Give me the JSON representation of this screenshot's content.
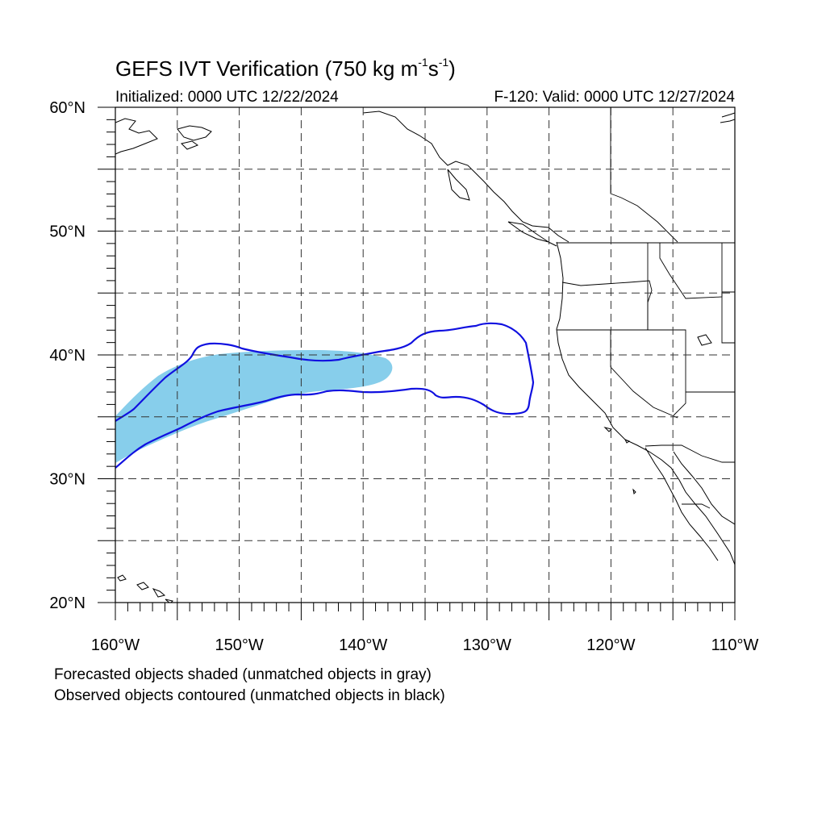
{
  "title": {
    "prefix": "GEFS IVT Verification (750 kg m",
    "exp1": "-1",
    "middle": "s",
    "exp2": "-1",
    "suffix": ")"
  },
  "initialized": "Initialized: 0000 UTC 12/22/2024",
  "valid": "F-120: Valid: 0000 UTC 12/27/2024",
  "map": {
    "lon_range": [
      -160,
      -110
    ],
    "lat_range": [
      20,
      60
    ],
    "grid_step_deg": 5,
    "lon_labels": [
      "160°W",
      "150°W",
      "140°W",
      "130°W",
      "120°W",
      "110°W"
    ],
    "lat_labels": [
      "20°N",
      "30°N",
      "40°N",
      "50°N",
      "60°N"
    ],
    "colors": {
      "forecast_fill": "#87ceeb",
      "observed_contour": "#1010e0",
      "coast": "#000000",
      "grid": "#333333"
    }
  },
  "captions": {
    "line1": "Forecasted objects shaded (unmatched objects in gray)",
    "line2": "Observed objects contoured (unmatched objects in black)"
  }
}
